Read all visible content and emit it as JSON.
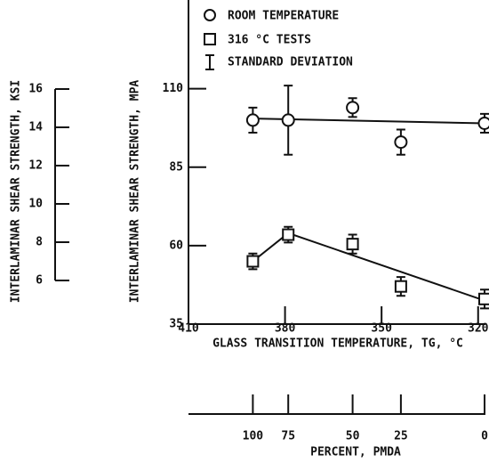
{
  "chart_data": {
    "type": "scatter",
    "xlabel": "GLASS TRANSITION TEMPERATURE, TG, °C",
    "ylabel": "INTERLAMINAR SHEAR STRENGTH, MPA",
    "xlim": [
      410,
      318
    ],
    "xticks": [
      410,
      380,
      350,
      320
    ],
    "ylim": [
      35,
      138
    ],
    "yticks": [
      35,
      60,
      85,
      110
    ],
    "series": [
      {
        "name": "ROOM TEMPERATURE",
        "marker": "circle",
        "color": "#111111",
        "x": [
          390,
          379,
          359,
          344,
          318
        ],
        "values": [
          100,
          100,
          104,
          93,
          99
        ],
        "errors": [
          4,
          11,
          3,
          4,
          3
        ]
      },
      {
        "name": "316 °C TESTS",
        "marker": "square",
        "color": "#111111",
        "x": [
          390,
          379,
          359,
          344,
          318
        ],
        "values": [
          55,
          63.5,
          60.5,
          47,
          43
        ],
        "errors": [
          2.5,
          2.5,
          3,
          3,
          3
        ]
      }
    ],
    "error_legend": "STANDARD DEVIATION",
    "fit_lines": [
      {
        "x": [
          390,
          318
        ],
        "values": [
          100.5,
          99
        ]
      },
      {
        "x": [
          390,
          379,
          318
        ],
        "values": [
          55,
          64,
          42.5
        ]
      }
    ],
    "ksi_axis": {
      "label": "INTERLAMINAR SHEAR STRENGTH, KSI",
      "lim": [
        6,
        16
      ],
      "ticks": [
        6,
        8,
        10,
        12,
        14,
        16
      ]
    },
    "percent_axis": {
      "label": "PERCENT, PMDA",
      "ticks": [
        {
          "percent": 100,
          "tg": 390
        },
        {
          "percent": 75,
          "tg": 379
        },
        {
          "percent": 50,
          "tg": 359
        },
        {
          "percent": 25,
          "tg": 344
        },
        {
          "percent": 0,
          "tg": 318
        }
      ]
    }
  }
}
